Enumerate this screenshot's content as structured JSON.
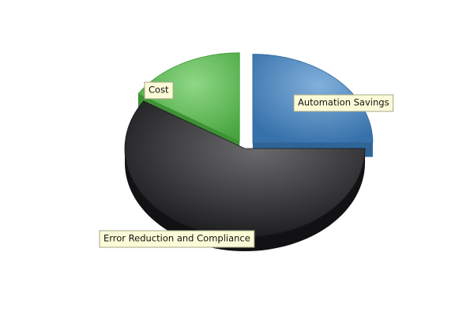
{
  "chart_data": {
    "type": "pie",
    "style": "3d-exploded",
    "title": "",
    "series": [
      {
        "slices": [
          {
            "label": "Automation Savings",
            "value": 25,
            "color": "#3f85c8",
            "exploded": true
          },
          {
            "label": "Error Reduction and Compliance",
            "value": 59,
            "color": "#1c1c1e",
            "exploded": false
          },
          {
            "label": "Cost",
            "value": 16,
            "color": "#52c246",
            "exploded": true
          }
        ]
      }
    ],
    "label_style": "callout boxes",
    "legend": "none"
  }
}
